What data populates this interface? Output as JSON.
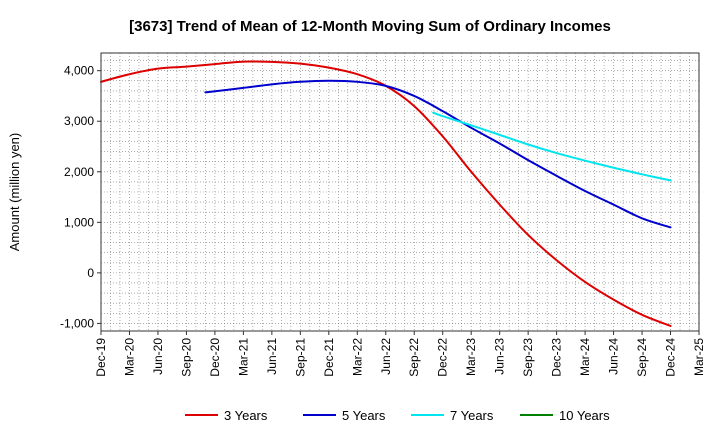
{
  "chart_data": {
    "type": "line",
    "title": "[3673]  Trend of Mean of 12-Month Moving Sum of Ordinary Incomes",
    "xlabel": "",
    "ylabel": "Amount (million yen)",
    "ylim": [
      -1150,
      4350
    ],
    "yticks": [
      4000,
      3000,
      2000,
      1000,
      0,
      -1000
    ],
    "ytick_labels": [
      "4,000",
      "3,000",
      "2,000",
      "1,000",
      "0",
      "-1,000"
    ],
    "xlim": [
      0,
      63
    ],
    "x_ticks": [
      0,
      3,
      6,
      9,
      12,
      15,
      18,
      21,
      24,
      27,
      30,
      33,
      36,
      39,
      42,
      45,
      48,
      51,
      54,
      57,
      60,
      63
    ],
    "x_tick_labels": [
      "Dec-19",
      "Mar-20",
      "Jun-20",
      "Sep-20",
      "Dec-20",
      "Mar-21",
      "Jun-21",
      "Sep-21",
      "Dec-21",
      "Mar-22",
      "Jun-22",
      "Sep-22",
      "Dec-22",
      "Mar-23",
      "Jun-23",
      "Sep-23",
      "Dec-23",
      "Mar-24",
      "Jun-24",
      "Sep-24",
      "Dec-24",
      "Mar-25"
    ],
    "grid": true,
    "legend_position": "bottom",
    "series": [
      {
        "name": "3 Years",
        "color": "#dd0000",
        "x": [
          0,
          3,
          6,
          9,
          12,
          15,
          18,
          21,
          24,
          27,
          30,
          33,
          36,
          39,
          42,
          45,
          48,
          51,
          54,
          57,
          60
        ],
        "values": [
          3780,
          3930,
          4040,
          4080,
          4130,
          4180,
          4175,
          4140,
          4060,
          3930,
          3700,
          3300,
          2700,
          2000,
          1350,
          750,
          250,
          -180,
          -530,
          -830,
          -1050
        ]
      },
      {
        "name": "5 Years",
        "color": "#0000cc",
        "x": [
          11,
          15,
          18,
          21,
          24,
          27,
          30,
          33,
          36,
          39,
          42,
          45,
          48,
          51,
          54,
          57,
          60
        ],
        "values": [
          3570,
          3660,
          3730,
          3780,
          3800,
          3780,
          3700,
          3500,
          3200,
          2870,
          2560,
          2230,
          1920,
          1620,
          1350,
          1080,
          900
        ]
      },
      {
        "name": "7 Years",
        "color": "#00e5ee",
        "x": [
          35,
          36,
          39,
          42,
          45,
          48,
          51,
          54,
          57,
          60
        ],
        "values": [
          3170,
          3100,
          2920,
          2730,
          2540,
          2370,
          2220,
          2080,
          1950,
          1830
        ]
      },
      {
        "name": "10 Years",
        "color": "#008000",
        "x": [],
        "values": []
      }
    ]
  }
}
